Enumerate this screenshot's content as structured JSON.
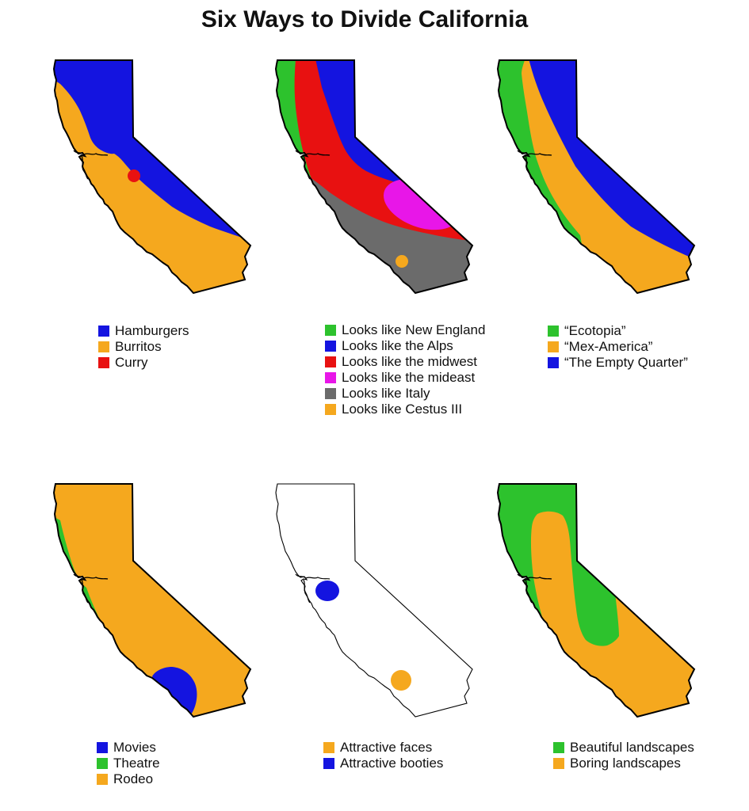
{
  "title": "Six Ways to Divide California",
  "colors": {
    "blue": "#1414E0",
    "orange": "#F5A81E",
    "red": "#E81111",
    "green": "#2DC22D",
    "magenta": "#E816E8",
    "gray": "#6B6B6B",
    "white": "#FFFFFF",
    "outline": "#000000"
  },
  "maps": [
    {
      "id": "food",
      "legend": [
        {
          "color": "blue",
          "label": "Hamburgers"
        },
        {
          "color": "orange",
          "label": "Burritos"
        },
        {
          "color": "red",
          "label": "Curry"
        }
      ],
      "markers": [
        {
          "color": "red"
        }
      ]
    },
    {
      "id": "lookalikes",
      "legend": [
        {
          "color": "green",
          "label": "Looks like New England"
        },
        {
          "color": "blue",
          "label": "Looks like the Alps"
        },
        {
          "color": "red",
          "label": "Looks like the midwest"
        },
        {
          "color": "magenta",
          "label": "Looks like the mideast"
        },
        {
          "color": "gray",
          "label": "Looks like Italy"
        },
        {
          "color": "orange",
          "label": "Looks like Cestus III"
        }
      ],
      "markers": [
        {
          "color": "orange"
        }
      ]
    },
    {
      "id": "nations",
      "legend": [
        {
          "color": "green",
          "label": "“Ecotopia”"
        },
        {
          "color": "orange",
          "label": "“Mex-America”"
        },
        {
          "color": "blue",
          "label": "“The Empty Quarter”"
        }
      ],
      "markers": []
    },
    {
      "id": "entertainment",
      "legend": [
        {
          "color": "blue",
          "label": "Movies"
        },
        {
          "color": "green",
          "label": "Theatre"
        },
        {
          "color": "orange",
          "label": "Rodeo"
        }
      ],
      "markers": [
        {
          "color": "blue"
        }
      ]
    },
    {
      "id": "attractiveness",
      "legend": [
        {
          "color": "orange",
          "label": "Attractive faces"
        },
        {
          "color": "blue",
          "label": "Attractive booties"
        }
      ],
      "markers": [
        {
          "color": "blue"
        },
        {
          "color": "orange"
        }
      ]
    },
    {
      "id": "landscapes",
      "legend": [
        {
          "color": "green",
          "label": "Beautiful landscapes"
        },
        {
          "color": "orange",
          "label": "Boring landscapes"
        }
      ],
      "markers": []
    }
  ]
}
